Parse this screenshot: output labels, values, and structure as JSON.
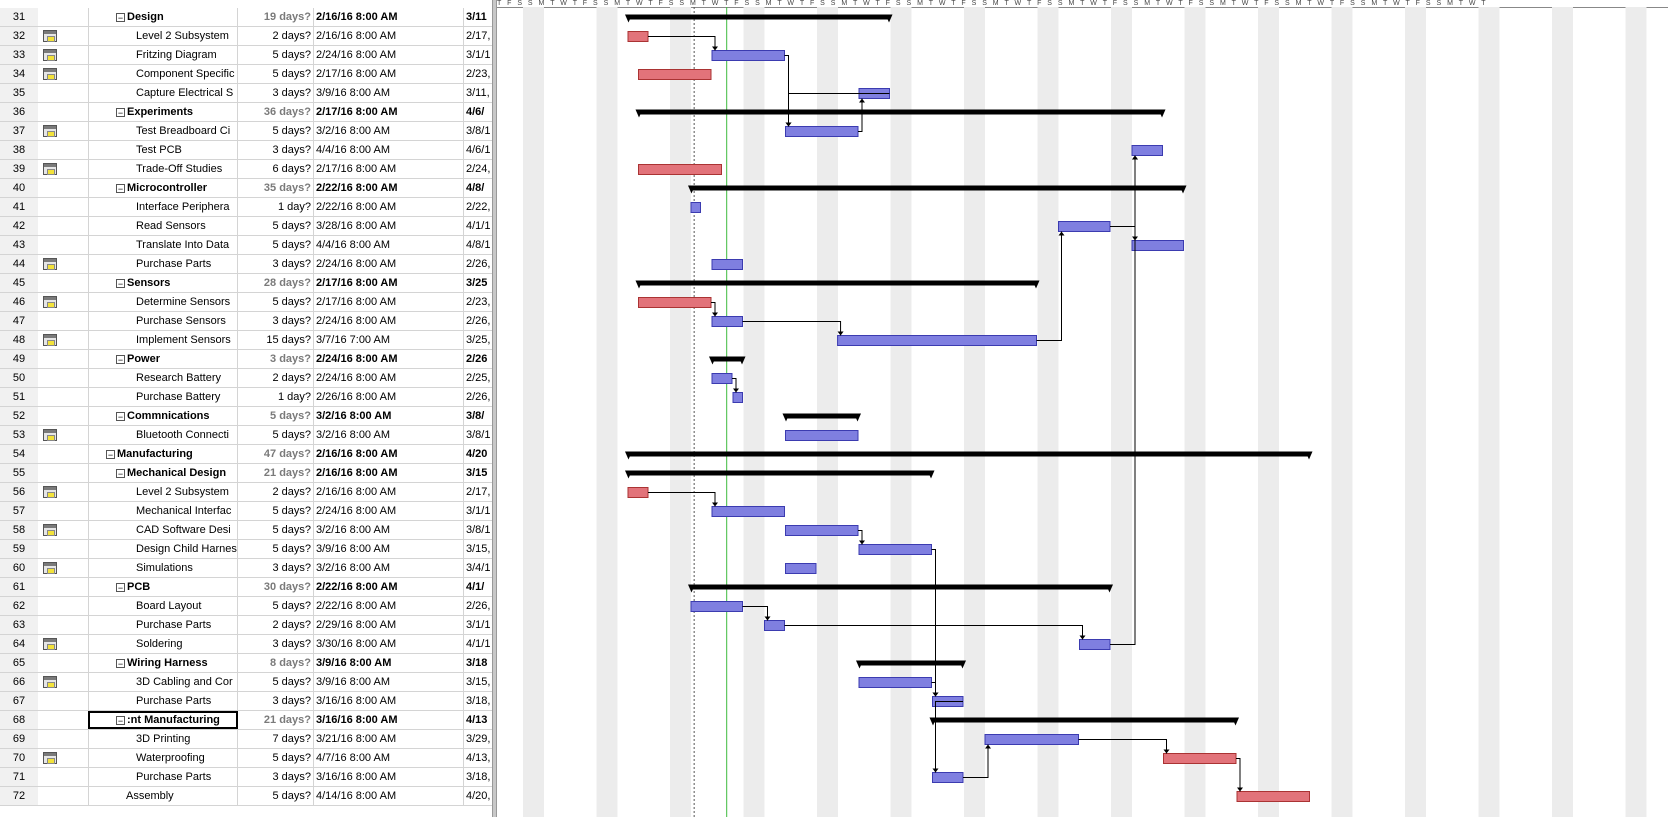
{
  "tasks": [
    {
      "id": "31",
      "name": "Design",
      "duration": "19 days?",
      "start": "2/16/16 8:00 AM",
      "finish": "3/11",
      "summary": true,
      "level": 1
    },
    {
      "id": "32",
      "name": "Level 2 Subsystem",
      "duration": "2 days?",
      "start": "2/16/16 8:00 AM",
      "finish": "2/17,",
      "indicator": "calendar-icon",
      "level": 2
    },
    {
      "id": "33",
      "name": "Fritzing Diagram",
      "duration": "5 days?",
      "start": "2/24/16 8:00 AM",
      "finish": "3/1/1",
      "indicator": "calendar-icon",
      "level": 2
    },
    {
      "id": "34",
      "name": "Component Specific",
      "duration": "5 days?",
      "start": "2/17/16 8:00 AM",
      "finish": "2/23,",
      "indicator": "calendar-icon",
      "level": 2
    },
    {
      "id": "35",
      "name": "Capture Electrical S",
      "duration": "3 days?",
      "start": "3/9/16 8:00 AM",
      "finish": "3/11,",
      "level": 2
    },
    {
      "id": "36",
      "name": "Experiments",
      "duration": "36 days?",
      "start": "2/17/16 8:00 AM",
      "finish": "4/6/",
      "summary": true,
      "level": 1
    },
    {
      "id": "37",
      "name": "Test Breadboard Ci",
      "duration": "5 days?",
      "start": "3/2/16 8:00 AM",
      "finish": "3/8/1",
      "indicator": "calendar-icon",
      "level": 2
    },
    {
      "id": "38",
      "name": "Test PCB",
      "duration": "3 days?",
      "start": "4/4/16 8:00 AM",
      "finish": "4/6/1",
      "level": 2
    },
    {
      "id": "39",
      "name": "Trade-Off Studies",
      "duration": "6 days?",
      "start": "2/17/16 8:00 AM",
      "finish": "2/24,",
      "indicator": "calendar-icon",
      "level": 2
    },
    {
      "id": "40",
      "name": "Microcontroller",
      "duration": "35 days?",
      "start": "2/22/16 8:00 AM",
      "finish": "4/8/",
      "summary": true,
      "level": 1
    },
    {
      "id": "41",
      "name": "Interface Periphera",
      "duration": "1 day?",
      "start": "2/22/16 8:00 AM",
      "finish": "2/22,",
      "level": 2
    },
    {
      "id": "42",
      "name": "Read Sensors",
      "duration": "5 days?",
      "start": "3/28/16 8:00 AM",
      "finish": "4/1/1",
      "level": 2
    },
    {
      "id": "43",
      "name": "Translate Into Data",
      "duration": "5 days?",
      "start": "4/4/16 8:00 AM",
      "finish": "4/8/1",
      "level": 2
    },
    {
      "id": "44",
      "name": "Purchase Parts",
      "duration": "3 days?",
      "start": "2/24/16 8:00 AM",
      "finish": "2/26,",
      "indicator": "calendar-icon",
      "level": 2
    },
    {
      "id": "45",
      "name": "Sensors",
      "duration": "28 days?",
      "start": "2/17/16 8:00 AM",
      "finish": "3/25",
      "summary": true,
      "level": 1
    },
    {
      "id": "46",
      "name": "Determine Sensors",
      "duration": "5 days?",
      "start": "2/17/16 8:00 AM",
      "finish": "2/23,",
      "indicator": "calendar-icon",
      "level": 2
    },
    {
      "id": "47",
      "name": "Purchase Sensors",
      "duration": "3 days?",
      "start": "2/24/16 8:00 AM",
      "finish": "2/26,",
      "level": 2
    },
    {
      "id": "48",
      "name": "Implement Sensors",
      "duration": "15 days?",
      "start": "3/7/16 7:00 AM",
      "finish": "3/25,",
      "indicator": "calendar-icon",
      "level": 2
    },
    {
      "id": "49",
      "name": "Power",
      "duration": "3 days?",
      "start": "2/24/16 8:00 AM",
      "finish": "2/26",
      "summary": true,
      "level": 1
    },
    {
      "id": "50",
      "name": "Research Battery",
      "duration": "2 days?",
      "start": "2/24/16 8:00 AM",
      "finish": "2/25,",
      "level": 2
    },
    {
      "id": "51",
      "name": "Purchase Battery",
      "duration": "1 day?",
      "start": "2/26/16 8:00 AM",
      "finish": "2/26,",
      "level": 2
    },
    {
      "id": "52",
      "name": "Commnications",
      "duration": "5 days?",
      "start": "3/2/16 8:00 AM",
      "finish": "3/8/",
      "summary": true,
      "level": 1
    },
    {
      "id": "53",
      "name": "Bluetooth Connecti",
      "duration": "5 days?",
      "start": "3/2/16 8:00 AM",
      "finish": "3/8/1",
      "indicator": "calendar-icon",
      "level": 2
    },
    {
      "id": "54",
      "name": "Manufacturing",
      "duration": "47 days?",
      "start": "2/16/16 8:00 AM",
      "finish": "4/20",
      "summary": true,
      "level": 0
    },
    {
      "id": "55",
      "name": "Mechanical Design",
      "duration": "21 days?",
      "start": "2/16/16 8:00 AM",
      "finish": "3/15",
      "summary": true,
      "level": 1
    },
    {
      "id": "56",
      "name": "Level 2 Subsystem",
      "duration": "2 days?",
      "start": "2/16/16 8:00 AM",
      "finish": "2/17,",
      "indicator": "calendar-icon",
      "level": 2
    },
    {
      "id": "57",
      "name": "Mechanical Interfac",
      "duration": "5 days?",
      "start": "2/24/16 8:00 AM",
      "finish": "3/1/1",
      "level": 2
    },
    {
      "id": "58",
      "name": "CAD Software Desi",
      "duration": "5 days?",
      "start": "3/2/16 8:00 AM",
      "finish": "3/8/1",
      "indicator": "calendar-icon",
      "level": 2
    },
    {
      "id": "59",
      "name": "Design Child Harnes",
      "duration": "5 days?",
      "start": "3/9/16 8:00 AM",
      "finish": "3/15,",
      "level": 2
    },
    {
      "id": "60",
      "name": "Simulations",
      "duration": "3 days?",
      "start": "3/2/16 8:00 AM",
      "finish": "3/4/1",
      "indicator": "calendar-icon",
      "level": 2
    },
    {
      "id": "61",
      "name": "PCB",
      "duration": "30 days?",
      "start": "2/22/16 8:00 AM",
      "finish": "4/1/",
      "summary": true,
      "level": 1
    },
    {
      "id": "62",
      "name": "Board Layout",
      "duration": "5 days?",
      "start": "2/22/16 8:00 AM",
      "finish": "2/26,",
      "level": 2
    },
    {
      "id": "63",
      "name": "Purchase Parts",
      "duration": "2 days?",
      "start": "2/29/16 8:00 AM",
      "finish": "3/1/1",
      "level": 2
    },
    {
      "id": "64",
      "name": "Soldering",
      "duration": "3 days?",
      "start": "3/30/16 8:00 AM",
      "finish": "4/1/1",
      "indicator": "calendar-icon",
      "level": 2
    },
    {
      "id": "65",
      "name": "Wiring Harness",
      "duration": "8 days?",
      "start": "3/9/16 8:00 AM",
      "finish": "3/18",
      "summary": true,
      "level": 1
    },
    {
      "id": "66",
      "name": "3D Cabling and Cor",
      "duration": "5 days?",
      "start": "3/9/16 8:00 AM",
      "finish": "3/15,",
      "indicator": "calendar-icon",
      "level": 2
    },
    {
      "id": "67",
      "name": "Purchase Parts",
      "duration": "3 days?",
      "start": "3/16/16 8:00 AM",
      "finish": "3/18,",
      "level": 2
    },
    {
      "id": "68",
      "name": ":nt Manufacturing",
      "duration": "21 days?",
      "start": "3/16/16 8:00 AM",
      "finish": "4/13",
      "summary": true,
      "level": 1,
      "selected": true
    },
    {
      "id": "69",
      "name": "3D Printing",
      "duration": "7 days?",
      "start": "3/21/16 8:00 AM",
      "finish": "3/29,",
      "level": 2
    },
    {
      "id": "70",
      "name": "Waterproofing",
      "duration": "5 days?",
      "start": "4/7/16 8:00 AM",
      "finish": "4/13,",
      "indicator": "calendar-icon",
      "level": 2
    },
    {
      "id": "71",
      "name": "Purchase Parts",
      "duration": "3 days?",
      "start": "3/16/16 8:00 AM",
      "finish": "3/18,",
      "level": 2
    },
    {
      "id": "72",
      "name": "Assembly",
      "duration": "5 days?",
      "start": "4/14/16 8:00 AM",
      "finish": "4/20,",
      "level": 1
    }
  ],
  "colors": {
    "task_bar": "#7f7fe0",
    "critical_bar": "#e2737a",
    "summary_bar": "#000000",
    "status_date_line": "#3dbb3d",
    "nonworking_shading": "#ececec"
  },
  "timescale_strip_text": "T F S S M T W T F S S M T W T F S S M T W T F S S M T W T F S S M T W T F S S M T W T F S S M T W T F S S M T W T F S S M T W T F S S M T W T F S S M T W T F S S M T W T F S S M T W T"
}
